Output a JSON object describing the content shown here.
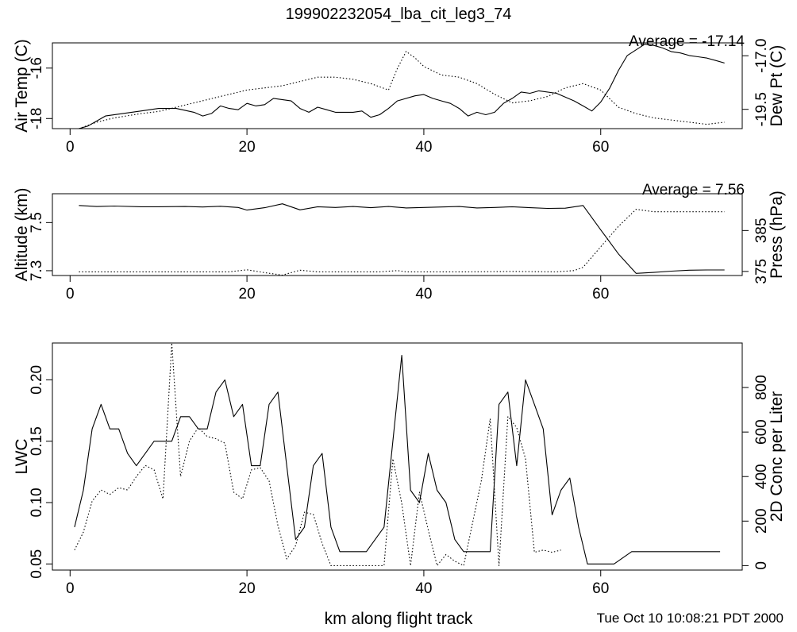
{
  "title": "199902232054_lba_cit_leg3_74",
  "xlabel": "km along flight track",
  "timestamp": "Tue Oct 10 10:08:21 PDT 2000",
  "chart_data": [
    {
      "type": "line",
      "panel": "temperature",
      "annotation": "Average = -17.14",
      "x_ticks": [
        "0",
        "20",
        "40",
        "60"
      ],
      "xlim": [
        -2,
        76
      ],
      "left_axis": {
        "label": "Air Temp (C)",
        "ylim": [
          -18.4,
          -15.0
        ],
        "ticks": [
          "-16",
          "-18"
        ],
        "tick_values": [
          -16,
          -18
        ]
      },
      "right_axis": {
        "label": "Dew Pt (C)",
        "ylim": [
          -20.4,
          -16.4
        ],
        "ticks": [
          "-17.0",
          "-19.5"
        ],
        "tick_values": [
          -17.0,
          -19.5
        ]
      },
      "series": [
        {
          "axis": "left",
          "style": "solid",
          "x": [
            1,
            2,
            3,
            4,
            6,
            8,
            9,
            10,
            12,
            14,
            15,
            16,
            17,
            18,
            19,
            20,
            21,
            22,
            23,
            25,
            26,
            27,
            28,
            29,
            30,
            32,
            33,
            34,
            35,
            36,
            37,
            39,
            40,
            41,
            42,
            43,
            44,
            45,
            46,
            47,
            48,
            49,
            50,
            51,
            52,
            53,
            55,
            57,
            58,
            59,
            60,
            61,
            62,
            63,
            65,
            66,
            67,
            68,
            69,
            70,
            71,
            72,
            73,
            74
          ],
          "y": [
            -18.4,
            -18.3,
            -18.1,
            -17.9,
            -17.8,
            -17.7,
            -17.65,
            -17.6,
            -17.6,
            -17.75,
            -17.9,
            -17.8,
            -17.5,
            -17.6,
            -17.65,
            -17.4,
            -17.5,
            -17.45,
            -17.2,
            -17.3,
            -17.6,
            -17.75,
            -17.55,
            -17.65,
            -17.75,
            -17.75,
            -17.7,
            -17.95,
            -17.85,
            -17.6,
            -17.3,
            -17.1,
            -17.05,
            -17.2,
            -17.3,
            -17.4,
            -17.6,
            -17.9,
            -17.75,
            -17.85,
            -17.75,
            -17.4,
            -17.2,
            -16.95,
            -17.0,
            -16.9,
            -17.0,
            -17.3,
            -17.5,
            -17.7,
            -17.35,
            -16.8,
            -16.1,
            -15.5,
            -15.05,
            -15.1,
            -15.2,
            -15.35,
            -15.4,
            -15.5,
            -15.55,
            -15.6,
            -15.7,
            -15.8
          ]
        },
        {
          "axis": "right",
          "style": "dotted",
          "x": [
            1,
            3,
            5,
            8,
            10,
            12,
            14,
            16,
            18,
            20,
            22,
            24,
            26,
            28,
            30,
            32,
            34,
            36,
            37,
            38,
            39,
            40,
            42,
            44,
            46,
            48,
            50,
            52,
            54,
            56,
            58,
            60,
            62,
            64,
            66,
            68,
            70,
            72,
            74
          ],
          "y": [
            -20.4,
            -20.1,
            -19.9,
            -19.7,
            -19.6,
            -19.4,
            -19.2,
            -19.0,
            -18.8,
            -18.6,
            -18.5,
            -18.4,
            -18.2,
            -18.0,
            -18.0,
            -18.1,
            -18.3,
            -18.6,
            -17.6,
            -16.8,
            -17.1,
            -17.5,
            -17.9,
            -18.0,
            -18.3,
            -18.8,
            -19.2,
            -19.1,
            -18.9,
            -18.5,
            -18.3,
            -18.6,
            -19.4,
            -19.7,
            -19.9,
            -20.0,
            -20.1,
            -20.2,
            -20.1
          ]
        }
      ]
    },
    {
      "type": "line",
      "panel": "altitude",
      "annotation": "Average = 7.56",
      "x_ticks": [
        "0",
        "20",
        "40",
        "60"
      ],
      "xlim": [
        -2,
        76
      ],
      "left_axis": {
        "label": "Altitude (km)",
        "ylim": [
          7.28,
          7.62
        ],
        "ticks": [
          "7.3",
          "7.5"
        ],
        "tick_values": [
          7.3,
          7.5
        ]
      },
      "right_axis": {
        "label": "Press (hPa)",
        "ylim": [
          374,
          394
        ],
        "ticks": [
          "375",
          "385"
        ],
        "tick_values": [
          375,
          385
        ]
      },
      "series": [
        {
          "axis": "left",
          "style": "solid",
          "x": [
            1,
            3,
            5,
            8,
            10,
            13,
            15,
            17,
            19,
            20,
            22,
            24,
            26,
            28,
            30,
            32,
            34,
            36,
            38,
            40,
            42,
            44,
            46,
            48,
            50,
            52,
            54,
            56,
            58,
            60,
            62,
            64,
            66,
            68,
            70,
            72,
            74
          ],
          "y": [
            7.571,
            7.567,
            7.569,
            7.566,
            7.566,
            7.567,
            7.565,
            7.568,
            7.563,
            7.552,
            7.562,
            7.578,
            7.553,
            7.566,
            7.563,
            7.567,
            7.562,
            7.567,
            7.561,
            7.563,
            7.565,
            7.567,
            7.561,
            7.563,
            7.566,
            7.562,
            7.559,
            7.56,
            7.571,
            7.47,
            7.37,
            7.289,
            7.293,
            7.298,
            7.302,
            7.303,
            7.303
          ]
        },
        {
          "axis": "right",
          "style": "dotted",
          "x": [
            1,
            5,
            10,
            15,
            18,
            20,
            22,
            24,
            26,
            28,
            30,
            35,
            37,
            38,
            40,
            45,
            50,
            55,
            57,
            58,
            60,
            62,
            64,
            66,
            70,
            74
          ],
          "y": [
            374.9,
            374.9,
            374.9,
            374.9,
            374.9,
            375.4,
            374.7,
            374.1,
            375.3,
            374.9,
            374.9,
            374.9,
            375.2,
            374.9,
            374.9,
            374.9,
            375.0,
            374.9,
            375.2,
            376.0,
            381.0,
            386.0,
            390.2,
            389.6,
            389.6,
            389.6
          ]
        }
      ]
    },
    {
      "type": "line",
      "panel": "lwc",
      "x_ticks": [
        "0",
        "20",
        "40",
        "60"
      ],
      "xlim": [
        -2,
        76
      ],
      "left_axis": {
        "label": "LWC",
        "ylim": [
          0.045,
          0.23
        ],
        "ticks": [
          "0.05",
          "0.10",
          "0.15",
          "0.20"
        ],
        "tick_values": [
          0.05,
          0.1,
          0.15,
          0.2
        ]
      },
      "right_axis": {
        "label": "2D Conc per Liter",
        "ylim": [
          -20,
          1000
        ],
        "ticks": [
          "0",
          "200",
          "400",
          "600",
          "800"
        ],
        "tick_values": [
          0,
          200,
          400,
          600,
          800
        ]
      },
      "series": [
        {
          "axis": "left",
          "style": "solid",
          "x": [
            0.5,
            1.5,
            2.5,
            3.5,
            4.5,
            5.5,
            6.5,
            7.5,
            8.5,
            9.5,
            11.5,
            12.5,
            13.5,
            14.5,
            15.5,
            16.5,
            17.5,
            18.5,
            19.5,
            20.5,
            21.5,
            22.5,
            23.5,
            24.5,
            25.5,
            26.5,
            27.5,
            28.5,
            29.5,
            30.5,
            33.5,
            35.5,
            36.5,
            37.5,
            38.5,
            39.5,
            40.5,
            41.5,
            42.5,
            43.5,
            44.5,
            46.5,
            47.5,
            48.5,
            49.5,
            50.5,
            51.5,
            52.5,
            53.5,
            54.5,
            55.5,
            56.5,
            57.5,
            58.5,
            59.5,
            60.5,
            61.5,
            63.5,
            66.5,
            70.5,
            73.5
          ],
          "y": [
            0.08,
            0.11,
            0.16,
            0.18,
            0.16,
            0.16,
            0.14,
            0.13,
            0.14,
            0.15,
            0.15,
            0.17,
            0.17,
            0.16,
            0.16,
            0.19,
            0.2,
            0.17,
            0.18,
            0.13,
            0.13,
            0.18,
            0.19,
            0.13,
            0.07,
            0.08,
            0.13,
            0.14,
            0.08,
            0.06,
            0.06,
            0.08,
            0.15,
            0.22,
            0.11,
            0.1,
            0.14,
            0.11,
            0.1,
            0.07,
            0.06,
            0.06,
            0.06,
            0.18,
            0.19,
            0.13,
            0.2,
            0.18,
            0.16,
            0.09,
            0.11,
            0.12,
            0.08,
            0.05,
            0.05,
            0.05,
            0.05,
            0.06,
            0.06,
            0.06,
            0.06
          ]
        },
        {
          "axis": "right",
          "style": "dotted",
          "x": [
            0.5,
            1.5,
            2.5,
            3.5,
            4.5,
            5.5,
            6.5,
            7.5,
            8.5,
            9.5,
            10.5,
            11.5,
            12.5,
            13.5,
            14.5,
            15.5,
            16.5,
            17.5,
            18.5,
            19.5,
            20.5,
            21.5,
            22.5,
            23.5,
            24.5,
            25.5,
            26.5,
            27.5,
            28.5,
            29.5,
            30.5,
            33.5,
            35.5,
            36.5,
            37.5,
            38.5,
            39.5,
            40.5,
            41.5,
            42.5,
            43.5,
            44.5,
            46.5,
            47.5,
            48.5,
            49.5,
            50.5,
            51.5,
            52.5,
            53.5,
            54.5,
            55.5
          ],
          "y": [
            70,
            150,
            290,
            340,
            320,
            350,
            340,
            400,
            450,
            430,
            300,
            1000,
            400,
            560,
            620,
            580,
            570,
            550,
            330,
            300,
            430,
            440,
            380,
            180,
            30,
            90,
            240,
            230,
            100,
            0,
            0,
            0,
            0,
            480,
            280,
            0,
            330,
            160,
            0,
            50,
            20,
            0,
            380,
            660,
            0,
            670,
            620,
            480,
            60,
            70,
            60,
            70
          ]
        }
      ]
    }
  ]
}
